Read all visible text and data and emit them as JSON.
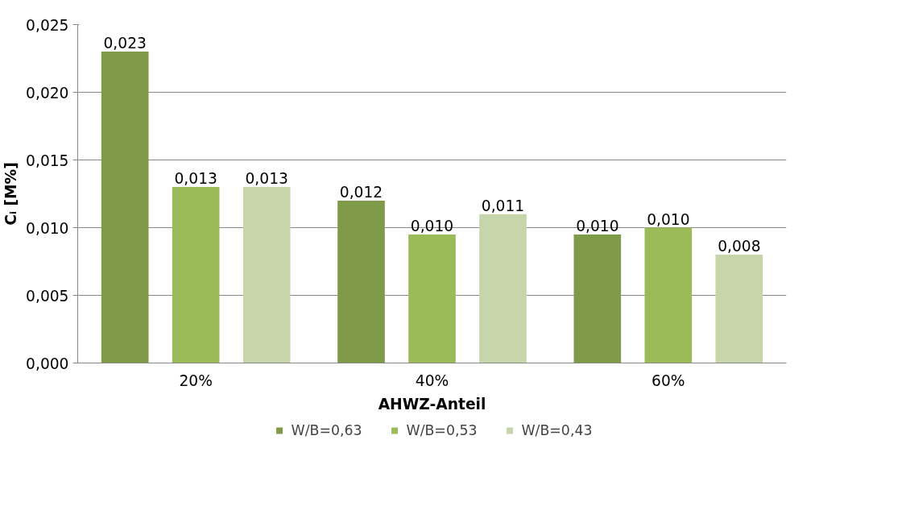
{
  "chart_data": {
    "type": "bar",
    "xlabel": "AHWZ-Anteil",
    "ylabel": "Cᵢ [M%]",
    "categories": [
      "20%",
      "40%",
      "60%"
    ],
    "series": [
      {
        "name": "W/B=0,63",
        "color": "#7f9b4a",
        "values": [
          0.023,
          0.012,
          0.0095
        ],
        "value_labels": [
          "0,023",
          "0,012",
          "0,010"
        ]
      },
      {
        "name": "W/B=0,53",
        "color": "#9bbb59",
        "values": [
          0.013,
          0.0095,
          0.01
        ],
        "value_labels": [
          "0,013",
          "0,010",
          "0,010"
        ]
      },
      {
        "name": "W/B=0,43",
        "color": "#c6d6aa",
        "values": [
          0.013,
          0.011,
          0.008
        ],
        "value_labels": [
          "0,013",
          "0,011",
          "0,008"
        ]
      }
    ],
    "ylim": [
      0,
      0.025
    ],
    "yticks": [
      {
        "value": 0,
        "label": "0,000"
      },
      {
        "value": 0.005,
        "label": "0,005"
      },
      {
        "value": 0.01,
        "label": "0,010"
      },
      {
        "value": 0.015,
        "label": "0,015"
      },
      {
        "value": 0.02,
        "label": "0,020"
      },
      {
        "value": 0.025,
        "label": "0,025"
      }
    ],
    "grid": "y",
    "legend": "bottom"
  }
}
